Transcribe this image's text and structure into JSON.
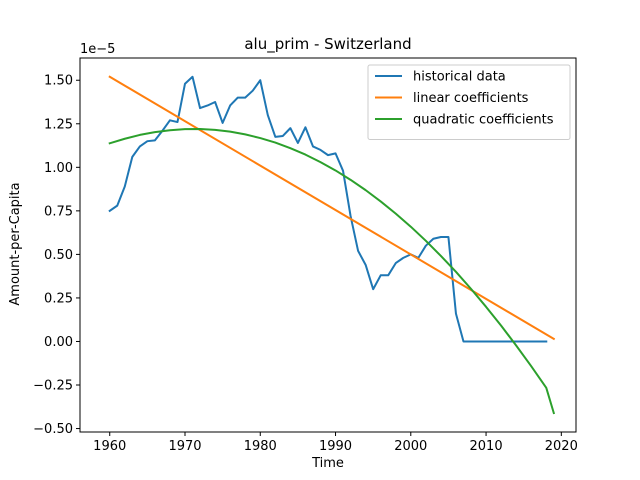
{
  "chart_data": {
    "type": "line",
    "title": "alu_prim - Switzerland",
    "xlabel": "Time",
    "ylabel": "Amount-per-Capita",
    "scale_label": "1e−5",
    "xlim": [
      1956.05,
      2021.95
    ],
    "ylim": [
      -0.5198,
      1.6277
    ],
    "xticks": [
      1960,
      1970,
      1980,
      1990,
      2000,
      2010,
      2020
    ],
    "yticks": [
      -0.5,
      -0.25,
      0.0,
      0.25,
      0.5,
      0.75,
      1.0,
      1.25,
      1.5
    ],
    "ytick_labels": [
      "−0.50",
      "−0.25",
      "0.00",
      "0.25",
      "0.50",
      "0.75",
      "1.00",
      "1.25",
      "1.50"
    ],
    "legend_position": "upper right",
    "grid": false,
    "series": [
      {
        "name": "historical data",
        "color": "#1f77b4",
        "x": [
          1960,
          1961,
          1962,
          1963,
          1964,
          1965,
          1966,
          1967,
          1968,
          1969,
          1970,
          1971,
          1972,
          1973,
          1974,
          1975,
          1976,
          1977,
          1978,
          1979,
          1980,
          1981,
          1982,
          1983,
          1984,
          1985,
          1986,
          1987,
          1988,
          1989,
          1990,
          1991,
          1992,
          1993,
          1994,
          1995,
          1996,
          1997,
          1998,
          1999,
          2000,
          2001,
          2002,
          2003,
          2004,
          2005,
          2006,
          2007,
          2008,
          2009,
          2010,
          2011,
          2012,
          2013,
          2014,
          2015,
          2016,
          2017,
          2018
        ],
        "y": [
          0.75,
          0.78,
          0.89,
          1.06,
          1.12,
          1.15,
          1.155,
          1.21,
          1.27,
          1.26,
          1.48,
          1.52,
          1.34,
          1.355,
          1.375,
          1.255,
          1.355,
          1.4,
          1.4,
          1.44,
          1.5,
          1.3,
          1.175,
          1.18,
          1.225,
          1.14,
          1.23,
          1.12,
          1.1,
          1.07,
          1.08,
          0.98,
          0.72,
          0.52,
          0.44,
          0.3,
          0.38,
          0.38,
          0.45,
          0.48,
          0.5,
          0.48,
          0.55,
          0.59,
          0.6,
          0.6,
          0.16,
          0.0,
          0.0,
          0.0,
          0.0,
          0.0,
          0.0,
          0.0,
          0.0,
          0.0,
          0.0,
          0.0,
          0.0
        ]
      },
      {
        "name": "linear coefficients",
        "color": "#ff7f0e",
        "x": [
          1960,
          2019
        ],
        "y": [
          1.52,
          0.015
        ]
      },
      {
        "name": "quadratic coefficients",
        "color": "#2ca02c",
        "x": [
          1960,
          1962,
          1964,
          1966,
          1968,
          1970,
          1972,
          1974,
          1976,
          1978,
          1980,
          1982,
          1984,
          1986,
          1988,
          1990,
          1992,
          1994,
          1996,
          1998,
          2000,
          2002,
          2004,
          2006,
          2008,
          2010,
          2012,
          2014,
          2016,
          2018,
          2019
        ],
        "y": [
          1.138,
          1.164,
          1.186,
          1.202,
          1.213,
          1.219,
          1.22,
          1.215,
          1.205,
          1.189,
          1.168,
          1.142,
          1.11,
          1.073,
          1.03,
          0.982,
          0.928,
          0.869,
          0.804,
          0.734,
          0.659,
          0.578,
          0.491,
          0.4,
          0.302,
          0.199,
          0.091,
          -0.023,
          -0.142,
          -0.266,
          -0.411
        ]
      }
    ]
  }
}
